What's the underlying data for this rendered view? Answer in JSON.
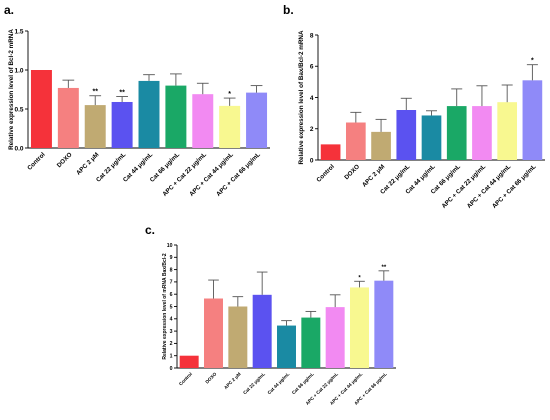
{
  "panel_labels": [
    "a.",
    "b.",
    "c."
  ],
  "chart_data": [
    {
      "panel": "a.",
      "type": "bar",
      "title": "",
      "xlabel": "",
      "ylabel": "Relative expression level of Bcl-2 mRNA",
      "ylim": [
        0,
        1.5
      ],
      "yticks": [
        "0.0",
        "0.5",
        "1.0",
        "1.5"
      ],
      "grid": false,
      "categories": [
        "Control",
        "DOXO",
        "APC 2 μM",
        "Cat 22 μg/mL",
        "Cat 44 μg/mL",
        "Cat 66 μg/mL",
        "APC + Cat 22 μg/mL",
        "APC + Cat 44 μg/mL",
        "APC + Cat 66 μg/mL"
      ],
      "values": [
        1.0,
        0.77,
        0.55,
        0.59,
        0.86,
        0.8,
        0.69,
        0.54,
        0.71
      ],
      "errors": [
        0.0,
        0.1,
        0.12,
        0.07,
        0.08,
        0.15,
        0.14,
        0.1,
        0.09
      ],
      "significance": [
        "",
        "",
        "**",
        "**",
        "",
        "",
        "",
        "*",
        ""
      ]
    },
    {
      "panel": "b.",
      "type": "bar",
      "title": "",
      "xlabel": "",
      "ylabel": "Relative expression level of Bax/Bcl-2 mRNA",
      "ylim": [
        0,
        8
      ],
      "yticks": [
        "0",
        "2",
        "4",
        "6",
        "8"
      ],
      "grid": false,
      "categories": [
        "Control",
        "DOXO",
        "APC 2 μM",
        "Cat 22 μg/mL",
        "Cat 44 μg/mL",
        "Cat 66 μg/mL",
        "APC + Cat 22 μg/mL",
        "APC + Cat 44 μg/mL",
        "APC + Cat 66 μg/mL"
      ],
      "values": [
        1.0,
        2.4,
        1.8,
        3.2,
        2.85,
        3.45,
        3.45,
        3.7,
        5.1
      ],
      "errors": [
        0.0,
        0.65,
        0.8,
        0.75,
        0.3,
        1.1,
        1.3,
        1.1,
        1.0
      ],
      "significance": [
        "",
        "",
        "",
        "",
        "",
        "",
        "",
        "",
        "*"
      ]
    },
    {
      "panel": "c.",
      "type": "bar",
      "title": "",
      "xlabel": "",
      "ylabel": "Relative expression level of mRNA Bax/Bcl-2",
      "ylim": [
        0,
        10
      ],
      "yticks": [
        "0",
        "1",
        "2",
        "3",
        "4",
        "5",
        "6",
        "7",
        "8",
        "9",
        "10"
      ],
      "grid": false,
      "categories": [
        "Control",
        "DOXO",
        "APC 2 μM",
        "Cat 22 μg/mL",
        "Cat 44 μg/mL",
        "Cat 66 μg/mL",
        "APC + Cat 22 μg/mL",
        "APC + Cat 44 μg/mL",
        "APC + Cat 66 μg/mL"
      ],
      "values": [
        1.0,
        5.65,
        5.0,
        5.95,
        3.45,
        4.1,
        4.95,
        6.55,
        7.1
      ],
      "errors": [
        0.0,
        1.5,
        0.8,
        1.85,
        0.4,
        0.5,
        1.0,
        0.5,
        0.8
      ],
      "significance": [
        "",
        "",
        "",
        "",
        "",
        "",
        "",
        "*",
        "**"
      ]
    }
  ],
  "colors": {
    "bars": [
      "#f5323a",
      "#f58080",
      "#c0aa72",
      "#5b52f0",
      "#1a8aa3",
      "#1aa866",
      "#f28af2",
      "#f8f890",
      "#8f8af8"
    ],
    "error": "#555555",
    "axis": "#000000"
  }
}
